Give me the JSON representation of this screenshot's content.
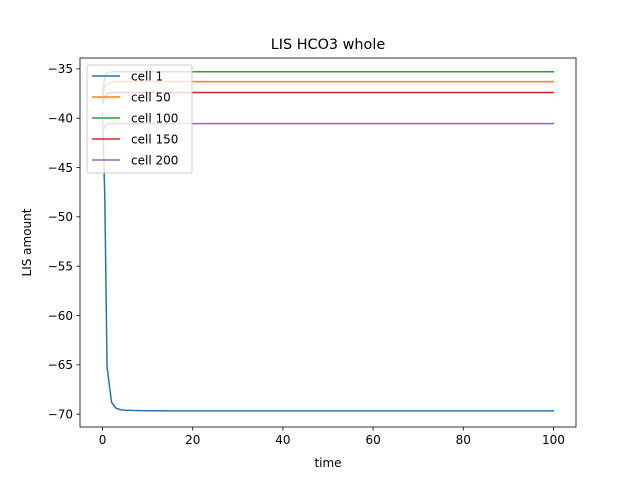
{
  "chart_data": {
    "type": "line",
    "title": "LIS HCO3 whole",
    "xlabel": "time",
    "ylabel": "LIS amount",
    "xlim": [
      -5,
      105
    ],
    "ylim": [
      -71.3,
      -33.9
    ],
    "xticks": [
      0,
      20,
      40,
      60,
      80,
      100
    ],
    "yticks": [
      -70,
      -65,
      -60,
      -55,
      -50,
      -45,
      -40,
      -35
    ],
    "xtick_labels": [
      "0",
      "20",
      "40",
      "60",
      "80",
      "100"
    ],
    "ytick_labels": [
      "−70",
      "−65",
      "−60",
      "−55",
      "−50",
      "−45",
      "−40",
      "−35"
    ],
    "grid": false,
    "legend_position": "upper-left",
    "series": [
      {
        "name": "cell 1",
        "color": "#1f77b4",
        "x": [
          0,
          0.5,
          1,
          2,
          3,
          4,
          5,
          7,
          10,
          15,
          20,
          30,
          50,
          75,
          100
        ],
        "y": [
          -39.5,
          -48,
          -65.2,
          -68.8,
          -69.4,
          -69.55,
          -69.6,
          -69.63,
          -69.65,
          -69.66,
          -69.66,
          -69.66,
          -69.66,
          -69.66,
          -69.66
        ]
      },
      {
        "name": "cell 50",
        "color": "#ff7f0e",
        "x": [
          0,
          0.5,
          1,
          2,
          3,
          5,
          10,
          100
        ],
        "y": [
          -38.0,
          -36.9,
          -36.5,
          -36.35,
          -36.3,
          -36.3,
          -36.3,
          -36.3
        ]
      },
      {
        "name": "cell 100",
        "color": "#2ca02c",
        "x": [
          0,
          0.5,
          1,
          2,
          3,
          5,
          10,
          100
        ],
        "y": [
          -37.5,
          -35.8,
          -35.4,
          -35.3,
          -35.3,
          -35.3,
          -35.3,
          -35.3
        ]
      },
      {
        "name": "cell 150",
        "color": "#d62728",
        "x": [
          0,
          0.5,
          1,
          2,
          3,
          5,
          10,
          100
        ],
        "y": [
          -38.5,
          -37.8,
          -37.5,
          -37.4,
          -37.4,
          -37.4,
          -37.4,
          -37.4
        ]
      },
      {
        "name": "cell 200",
        "color": "#9467bd",
        "x": [
          0,
          0.5,
          1,
          2,
          3,
          5,
          10,
          100
        ],
        "y": [
          -41.5,
          -40.8,
          -40.6,
          -40.55,
          -40.55,
          -40.55,
          -40.55,
          -40.55
        ]
      }
    ]
  }
}
